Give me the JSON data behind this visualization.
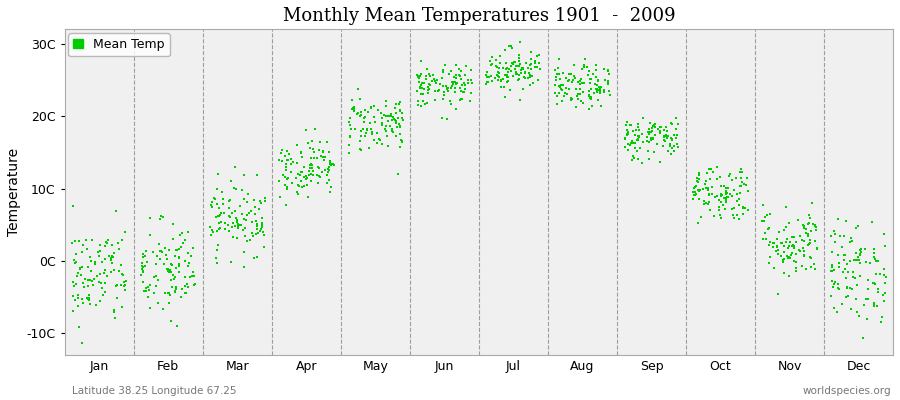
{
  "title": "Monthly Mean Temperatures 1901  -  2009",
  "ylabel": "Temperature",
  "subtitle_left": "Latitude 38.25 Longitude 67.25",
  "subtitle_right": "worldspecies.org",
  "legend_label": "Mean Temp",
  "dot_color": "#00cc00",
  "bg_color": "#f0f0f0",
  "plot_bg_color": "#f0f0f0",
  "ylim": [
    -13,
    32
  ],
  "yticks": [
    -10,
    0,
    10,
    20,
    30
  ],
  "ytick_labels": [
    "-10C",
    "0C",
    "10C",
    "20C",
    "30C"
  ],
  "months": [
    "Jan",
    "Feb",
    "Mar",
    "Apr",
    "May",
    "Jun",
    "Jul",
    "Aug",
    "Sep",
    "Oct",
    "Nov",
    "Dec"
  ],
  "monthly_means": [
    -2.0,
    -1.5,
    6.0,
    13.0,
    19.0,
    24.0,
    26.5,
    24.0,
    17.0,
    9.5,
    2.5,
    -1.5
  ],
  "monthly_stds": [
    3.5,
    3.5,
    2.5,
    2.0,
    2.0,
    1.5,
    1.5,
    1.5,
    1.5,
    2.0,
    2.5,
    3.5
  ],
  "years": 109,
  "seed": 42,
  "dot_size": 4,
  "figwidth": 9.0,
  "figheight": 4.0,
  "dpi": 100
}
